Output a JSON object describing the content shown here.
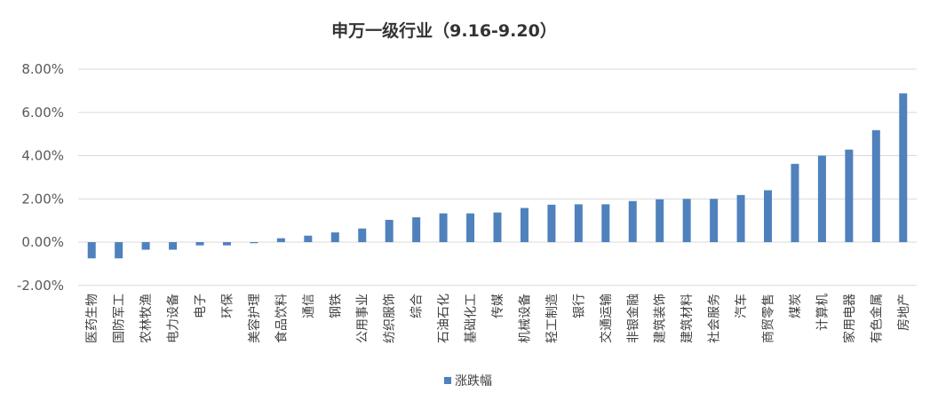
{
  "chart_data": {
    "type": "bar",
    "title": "申万一级行业（9.16-9.20）",
    "xlabel": "",
    "ylabel": "",
    "ylim": [
      -0.02,
      0.08
    ],
    "yticks": [
      "8.00%",
      "6.00%",
      "4.00%",
      "2.00%",
      "0.00%",
      "-2.00%"
    ],
    "ytick_values": [
      0.08,
      0.06,
      0.04,
      0.02,
      0.0,
      -0.02
    ],
    "grid": true,
    "legend_position": "bottom",
    "bar_color": "#4F81BD",
    "categories": [
      "医药生物",
      "国防军工",
      "农林牧渔",
      "电力设备",
      "电子",
      "环保",
      "美容护理",
      "食品饮料",
      "通信",
      "钢铁",
      "公用事业",
      "纺织服饰",
      "综合",
      "石油石化",
      "基础化工",
      "传媒",
      "机械设备",
      "轻工制造",
      "银行",
      "交通运输",
      "非银金融",
      "建筑装饰",
      "建筑材料",
      "社会服务",
      "汽车",
      "商贸零售",
      "煤炭",
      "计算机",
      "家用电器",
      "有色金属",
      "房地产"
    ],
    "series": [
      {
        "name": "涨跌幅",
        "values": [
          -0.0075,
          -0.0075,
          -0.0035,
          -0.0035,
          -0.0015,
          -0.0015,
          -0.0005,
          0.0018,
          0.003,
          0.0045,
          0.0063,
          0.0103,
          0.0115,
          0.0133,
          0.0133,
          0.0137,
          0.0158,
          0.0173,
          0.0175,
          0.0175,
          0.019,
          0.0198,
          0.02,
          0.02,
          0.0218,
          0.024,
          0.0362,
          0.04,
          0.0428,
          0.0518,
          0.0688
        ]
      }
    ]
  }
}
